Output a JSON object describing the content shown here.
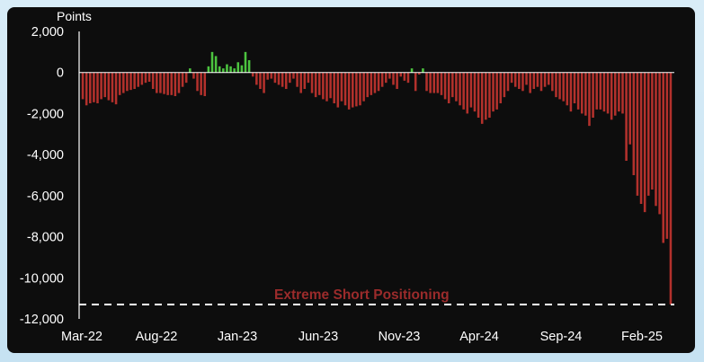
{
  "chart_data": {
    "type": "bar",
    "ylabel": "Points",
    "ylim": [
      -12000,
      2000
    ],
    "yticks": [
      2000,
      0,
      -2000,
      -4000,
      -6000,
      -8000,
      -10000,
      -12000
    ],
    "ytick_labels": [
      "2,000",
      "0",
      "-2,000",
      "-4,000",
      "-6,000",
      "-8,000",
      "-10,000",
      "-12,000"
    ],
    "xtick_labels": [
      "Mar-22",
      "Aug-22",
      "Jan-23",
      "Jun-23",
      "Nov-23",
      "Apr-24",
      "Sep-24",
      "Feb-25"
    ],
    "grid": false,
    "colors": {
      "positive": "#4cc43f",
      "negative": "#b3312c",
      "axis": "#ffffff",
      "reference": "#ffffff",
      "annotation": "#9b2b2b"
    },
    "reference_line": {
      "value": -11300,
      "style": "dashed",
      "label": "Extreme Short Positioning"
    },
    "values": [
      -1300,
      -1600,
      -1500,
      -1450,
      -1500,
      -1300,
      -1200,
      -1350,
      -1450,
      -1550,
      -1100,
      -1000,
      -900,
      -850,
      -800,
      -700,
      -600,
      -500,
      -450,
      -800,
      -1000,
      -1000,
      -1050,
      -1100,
      -1100,
      -1150,
      -1000,
      -700,
      -500,
      200,
      -300,
      -900,
      -1100,
      -1150,
      300,
      1000,
      800,
      300,
      200,
      400,
      300,
      200,
      500,
      350,
      1000,
      600,
      -200,
      -600,
      -800,
      -1000,
      -350,
      -300,
      -500,
      -600,
      -700,
      -800,
      -500,
      -300,
      -700,
      -1000,
      -800,
      -500,
      -1000,
      -1200,
      -1100,
      -1300,
      -1400,
      -1250,
      -1500,
      -1700,
      -1400,
      -1600,
      -1800,
      -1700,
      -1650,
      -1600,
      -1400,
      -1200,
      -1100,
      -1000,
      -900,
      -700,
      -500,
      -300,
      -600,
      -800,
      -200,
      -400,
      -500,
      200,
      -900,
      -100,
      200,
      -900,
      -1000,
      -1000,
      -1000,
      -1100,
      -1300,
      -1500,
      -1200,
      -1400,
      -1600,
      -1800,
      -2000,
      -1700,
      -1900,
      -2200,
      -2500,
      -2300,
      -2200,
      -1900,
      -1800,
      -1500,
      -1200,
      -900,
      -500,
      -700,
      -800,
      -900,
      -600,
      -1000,
      -800,
      -700,
      -900,
      -700,
      -600,
      -900,
      -1200,
      -1300,
      -1400,
      -1600,
      -1900,
      -1500,
      -1800,
      -2000,
      -2100,
      -2600,
      -2200,
      -1800,
      -1800,
      -1900,
      -2000,
      -2300,
      -2100,
      -1900,
      -2000,
      -4300,
      -3500,
      -5000,
      -6000,
      -6400,
      -6800,
      -6000,
      -5700,
      -6500,
      -6900,
      -8300,
      -8100,
      -11300
    ],
    "date_range": {
      "start": "Mar-22",
      "end": "Feb-25"
    }
  }
}
